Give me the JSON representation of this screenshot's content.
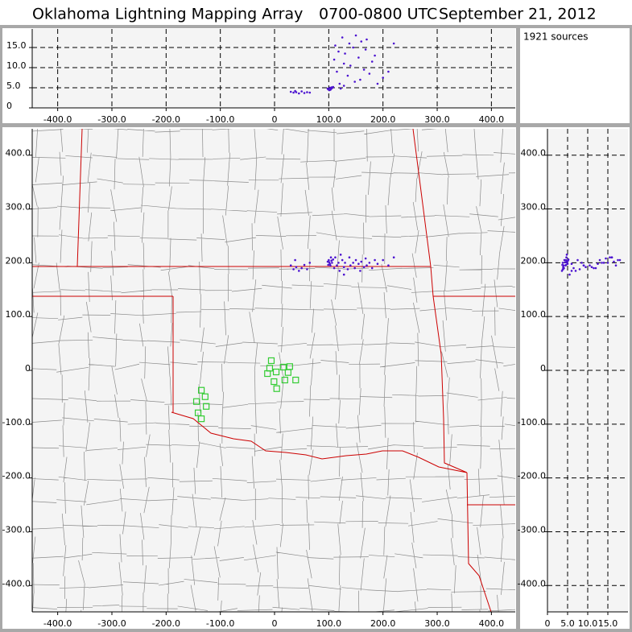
{
  "title": "Oklahoma Lightning Mapping Array",
  "time_range": "0700-0800 UTC",
  "date": "September 21, 2012",
  "source_count_label": "1921 sources",
  "sources": {
    "color": "#4b12d0",
    "x": [
      30,
      35,
      40,
      45,
      50,
      55,
      60,
      65,
      38,
      98,
      100,
      102,
      104,
      106,
      103,
      108,
      101,
      105,
      99,
      110,
      112,
      115,
      118,
      120,
      125,
      128,
      130,
      135,
      138,
      140,
      145,
      148,
      150,
      155,
      158,
      160,
      165,
      168,
      170,
      175,
      180,
      185,
      190,
      200,
      210,
      220,
      128,
      122
    ],
    "y": [
      195,
      188,
      192,
      185,
      190,
      196,
      188,
      200,
      205,
      202,
      205,
      198,
      210,
      200,
      195,
      206,
      201,
      204,
      196,
      190,
      210,
      195,
      200,
      185,
      205,
      192,
      200,
      188,
      210,
      195,
      200,
      190,
      205,
      198,
      185,
      202,
      192,
      208,
      195,
      200,
      190,
      205,
      198,
      205,
      195,
      210,
      178,
      215
    ],
    "alt": [
      4.0,
      3.8,
      3.9,
      3.6,
      4.1,
      3.7,
      3.9,
      3.8,
      4.2,
      4.8,
      4.6,
      5.0,
      4.7,
      4.9,
      4.5,
      5.2,
      4.4,
      5.1,
      4.6,
      12.0,
      15.5,
      9.0,
      14.0,
      6.0,
      17.5,
      11.0,
      13.5,
      8.0,
      16.0,
      10.5,
      15.0,
      6.5,
      18.0,
      12.5,
      7.0,
      16.5,
      9.5,
      14.5,
      17.0,
      8.5,
      11.5,
      13.0,
      6.0,
      7.5,
      9.0,
      16.0,
      5.5,
      4.8
    ]
  },
  "stations": {
    "color": "#33cc33",
    "x": [
      -6,
      -9,
      -13,
      3,
      16,
      28,
      25,
      19,
      -1,
      4,
      39,
      -135,
      -128,
      -144,
      -126,
      -141,
      -135
    ],
    "y": [
      18,
      4,
      -6,
      -3,
      6,
      7,
      -4,
      -18,
      -21,
      -34,
      -18,
      -37,
      -49,
      -58,
      -67,
      -79,
      -90
    ]
  },
  "chart_data": [
    {
      "type": "scatter",
      "xlim": [
        -447,
        444
      ],
      "ylim": [
        0,
        19.6
      ],
      "xticks": [
        {
          "value": -400,
          "label": "-400.0"
        },
        {
          "value": -300,
          "label": "-300.0"
        },
        {
          "value": -200,
          "label": "-200.0"
        },
        {
          "value": -100,
          "label": "-100.0"
        },
        0,
        {
          "value": 100,
          "label": "100.0"
        },
        {
          "value": 200,
          "label": "200.0"
        },
        {
          "value": 300,
          "label": "300.0"
        },
        {
          "value": 400,
          "label": "400.0"
        }
      ],
      "yticks": [
        0,
        {
          "value": 5,
          "label": "5.0"
        },
        {
          "value": 10,
          "label": "10.0"
        },
        {
          "value": 15,
          "label": "15.0"
        }
      ],
      "grid": true
    },
    {
      "type": "scatter",
      "xlim": [
        -447,
        444
      ],
      "ylim": [
        -449,
        449
      ],
      "xticks": [
        {
          "value": -400,
          "label": "-400.0"
        },
        {
          "value": -300,
          "label": "-300.0"
        },
        {
          "value": -200,
          "label": "-200.0"
        },
        {
          "value": -100,
          "label": "-100.0"
        },
        0,
        {
          "value": 100,
          "label": "100.0"
        },
        {
          "value": 200,
          "label": "200.0"
        },
        {
          "value": 300,
          "label": "300.0"
        },
        {
          "value": 400,
          "label": "400.0"
        }
      ],
      "yticks": [
        {
          "value": -400,
          "label": "-400.0"
        },
        {
          "value": -300,
          "label": "-300.0"
        },
        {
          "value": -200,
          "label": "-200.0"
        },
        {
          "value": -100,
          "label": "-100.0"
        },
        0,
        {
          "value": 100,
          "label": "100.0"
        },
        {
          "value": 200,
          "label": "200.0"
        },
        {
          "value": 300,
          "label": "300.0"
        },
        {
          "value": 400,
          "label": "400.0"
        }
      ],
      "grid": false
    },
    {
      "type": "scatter",
      "xlim": [
        0,
        20
      ],
      "ylim": [
        -449,
        449
      ],
      "xticks": [
        0,
        {
          "value": 5,
          "label": "5.0"
        },
        {
          "value": 10,
          "label": "10.0"
        },
        {
          "value": 15,
          "label": "15.0"
        }
      ],
      "yticks": [
        {
          "value": -400,
          "label": "-400.0"
        },
        {
          "value": -300,
          "label": "-300.0"
        },
        {
          "value": -200,
          "label": "-200.0"
        },
        {
          "value": -100,
          "label": "-100.0"
        },
        0,
        {
          "value": 100,
          "label": "100.0"
        },
        {
          "value": 200,
          "label": "200.0"
        },
        {
          "value": 300,
          "label": "300.0"
        },
        {
          "value": 400,
          "label": "400.0"
        }
      ],
      "grid": true
    }
  ]
}
